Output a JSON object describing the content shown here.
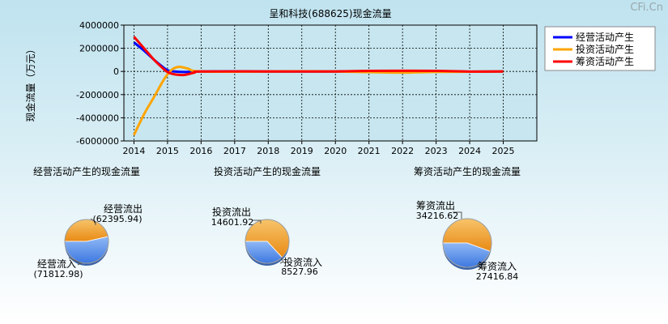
{
  "brand": "CFi.Cn",
  "chart_data": [
    {
      "type": "line",
      "title": "呈和科技(688625)现金流量",
      "ylabel": "现金流量（万元）",
      "ylim": [
        -6000000,
        4000000
      ],
      "yticks": [
        "4000000",
        "2000000",
        "0",
        "-2000000",
        "-4000000",
        "-6000000"
      ],
      "ytick_values": [
        4000000,
        2000000,
        0,
        -2000000,
        -4000000,
        -6000000
      ],
      "xticks": [
        "2014",
        "2015",
        "2016",
        "2017",
        "2018",
        "2019",
        "2020",
        "2021",
        "2022",
        "2023",
        "2024",
        "2025"
      ],
      "xlim": [
        2013.7,
        2026.0
      ],
      "grid": true,
      "legend_position": "top-right",
      "series": [
        {
          "name": "经营活动产生",
          "color": "#0000ff",
          "x": [
            2014.0,
            2014.3,
            2014.6,
            2014.85,
            2015.0,
            2015.2,
            2015.5,
            2016.0,
            2018.0,
            2020.0,
            2021.0,
            2022.0,
            2023.0,
            2024.0,
            2025.0
          ],
          "values": [
            2500000,
            1800000,
            1000000,
            400000,
            100000,
            0,
            -50000,
            0,
            0,
            0,
            20000,
            30000,
            10000,
            -20000,
            0
          ]
        },
        {
          "name": "投资活动产生",
          "color": "#ffa500",
          "x": [
            2014.0,
            2014.3,
            2014.6,
            2014.85,
            2015.0,
            2015.15,
            2015.35,
            2015.6,
            2016.0,
            2018.0,
            2020.0,
            2021.0,
            2022.0,
            2023.0,
            2024.0,
            2025.0
          ],
          "values": [
            -5500000,
            -3700000,
            -2200000,
            -900000,
            -250000,
            200000,
            400000,
            250000,
            0,
            0,
            0,
            -60000,
            -100000,
            -40000,
            -20000,
            0
          ]
        },
        {
          "name": "筹资活动产生",
          "color": "#ff0000",
          "x": [
            2014.0,
            2014.3,
            2014.6,
            2014.85,
            2015.0,
            2015.2,
            2015.5,
            2015.8,
            2016.0,
            2018.0,
            2020.0,
            2021.0,
            2022.0,
            2023.0,
            2024.0,
            2025.0
          ],
          "values": [
            3000000,
            2000000,
            1000000,
            300000,
            -50000,
            -250000,
            -300000,
            -100000,
            0,
            0,
            0,
            50000,
            60000,
            50000,
            -10000,
            0
          ]
        }
      ]
    },
    {
      "type": "pie",
      "title": "经营活动产生的现金流量",
      "slices": [
        {
          "label": "经营流出",
          "value": "(62395.94)",
          "amount": 62395.94,
          "color": "#f2a02e"
        },
        {
          "label": "经营流入",
          "value": "(71812.98)",
          "amount": 71812.98,
          "color": "#5b93e8"
        }
      ]
    },
    {
      "type": "pie",
      "title": "投资活动产生的现金流量",
      "slices": [
        {
          "label": "投资流出",
          "value": "14601.92",
          "amount": 14601.92,
          "color": "#f2a02e"
        },
        {
          "label": "投资流入",
          "value": "8527.96",
          "amount": 8527.96,
          "color": "#5b93e8"
        }
      ]
    },
    {
      "type": "pie",
      "title": "筹资活动产生的现金流量",
      "slices": [
        {
          "label": "筹资流出",
          "value": "34216.62",
          "amount": 34216.62,
          "color": "#f2a02e"
        },
        {
          "label": "筹资流入",
          "value": "27416.84",
          "amount": 27416.84,
          "color": "#5b93e8"
        }
      ]
    }
  ]
}
